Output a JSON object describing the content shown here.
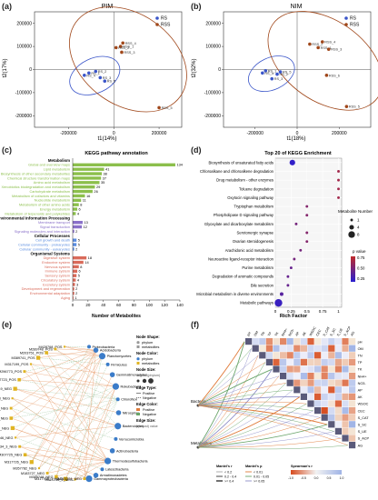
{
  "panel_labels": {
    "a": "(a)",
    "b": "(b)",
    "c": "(c)",
    "d": "(d)",
    "e": "(e)",
    "f": "(f)"
  },
  "chart_data": [
    {
      "id": "a",
      "type": "scatter",
      "title": "PIM",
      "xlabel": "t1(14%)",
      "ylabel": "t2(17%)",
      "xlim": [
        -350000,
        300000
      ],
      "ylim": [
        -250000,
        250000
      ],
      "xticks": [
        -200000,
        0,
        200000
      ],
      "yticks": [
        -200000,
        -100000,
        0,
        100000,
        200000
      ],
      "legend": "top-right",
      "series": [
        {
          "name": "RS",
          "color": "#3a55c9",
          "points": [
            {
              "label": "RS_1",
              "x": -110000,
              "y": -15000
            },
            {
              "label": "RS_2",
              "x": -80000,
              "y": -8000
            },
            {
              "label": "RS_3",
              "x": -60000,
              "y": -35000
            },
            {
              "label": "RS_4",
              "x": -130000,
              "y": -25000
            },
            {
              "label": "RS_5",
              "x": -40000,
              "y": -50000
            }
          ]
        },
        {
          "name": "RSS",
          "color": "#a0471a",
          "points": [
            {
              "label": "RSS_1",
              "x": 30000,
              "y": 100000
            },
            {
              "label": "RSS_2",
              "x": 10000,
              "y": 95000
            },
            {
              "label": "RSS_3",
              "x": 35000,
              "y": 75000
            },
            {
              "label": "RSS_4",
              "x": 40000,
              "y": 115000
            },
            {
              "label": "RSS_5",
              "x": 200000,
              "y": -165000
            }
          ]
        }
      ]
    },
    {
      "id": "b",
      "type": "scatter",
      "title": "NIM",
      "xlabel": "t1(18%)",
      "ylabel": "t2(32%)",
      "xlim": [
        -350000,
        350000
      ],
      "ylim": [
        -250000,
        250000
      ],
      "xticks": [
        -200000,
        0,
        200000
      ],
      "yticks": [
        -200000,
        -100000,
        0,
        100000,
        200000
      ],
      "legend": "top-right",
      "series": [
        {
          "name": "RS",
          "color": "#3a55c9",
          "points": [
            {
              "label": "RS_1",
              "x": -150000,
              "y": -5000
            },
            {
              "label": "RS_2",
              "x": -95000,
              "y": -20000
            },
            {
              "label": "RS_3",
              "x": -120000,
              "y": -40000
            },
            {
              "label": "RS_4",
              "x": -165000,
              "y": -15000
            },
            {
              "label": "RS_5",
              "x": -80000,
              "y": -10000
            }
          ]
        },
        {
          "name": "RSS",
          "color": "#a0471a",
          "points": [
            {
              "label": "RSS_1",
              "x": 100000,
              "y": 95000
            },
            {
              "label": "RSS_2",
              "x": 60000,
              "y": 110000
            },
            {
              "label": "RSS_3",
              "x": 150000,
              "y": 88000
            },
            {
              "label": "RSS_4",
              "x": 120000,
              "y": 120000
            },
            {
              "label": "RSS_5",
              "x": 235000,
              "y": -160000
            },
            {
              "label": "RSS_6",
              "x": 140000,
              "y": -25000
            }
          ]
        }
      ]
    },
    {
      "id": "c",
      "type": "bar",
      "title": "KEGG pathway annotation",
      "xlabel": "Number of Metabolites",
      "xlim": [
        0,
        140
      ],
      "xticks": [
        0,
        20,
        40,
        60,
        80,
        100,
        120,
        140
      ],
      "groups": [
        {
          "name": "Metabolism",
          "color": "#8cbf4c",
          "items": [
            {
              "label": "Global and overview maps",
              "value": 134
            },
            {
              "label": "Lipid metabolism",
              "value": 41
            },
            {
              "label": "Biosynthesis of other secondary metabolites",
              "value": 38
            },
            {
              "label": "Chemical structure transformation maps",
              "value": 37
            },
            {
              "label": "Amino acid metabolism",
              "value": 35
            },
            {
              "label": "Xenobiotics biodegradation and metabolism",
              "value": 29
            },
            {
              "label": "Carbohydrate metabolism",
              "value": 26
            },
            {
              "label": "Metabolism of cofactors and vitamins",
              "value": 16
            },
            {
              "label": "Nucleotide metabolism",
              "value": 11
            },
            {
              "label": "Metabolism of other amino acids",
              "value": 8
            },
            {
              "label": "Energy metabolism",
              "value": 6
            },
            {
              "label": "Metabolism of terpenoids and polyketides",
              "value": 4
            }
          ]
        },
        {
          "name": "Environmental Information Processing",
          "color": "#8a71c9",
          "items": [
            {
              "label": "Membrane transport",
              "value": 13
            },
            {
              "label": "Signal transduction",
              "value": 12
            },
            {
              "label": "Signaling molecules and interaction",
              "value": 2
            }
          ]
        },
        {
          "name": "Cellular Processes",
          "color": "#5b8de0",
          "items": [
            {
              "label": "Cell growth and death",
              "value": 5
            },
            {
              "label": "Cellular community - prokaryotes",
              "value": 5
            },
            {
              "label": "Cellular community - eukaryotes",
              "value": 2
            }
          ]
        },
        {
          "name": "Organismal Systems",
          "color": "#d96b5a",
          "items": [
            {
              "label": "Digestive system",
              "value": 18
            },
            {
              "label": "Endocrine system",
              "value": 14
            },
            {
              "label": "Nervous system",
              "value": 8
            },
            {
              "label": "Immune system",
              "value": 6
            },
            {
              "label": "Sensory system",
              "value": 5
            },
            {
              "label": "Circulatory system",
              "value": 4
            },
            {
              "label": "Excretory system",
              "value": 3
            },
            {
              "label": "Development and regeneration",
              "value": 2
            },
            {
              "label": "Environmental adaptation",
              "value": 2
            },
            {
              "label": "Aging",
              "value": 1
            }
          ]
        }
      ]
    },
    {
      "id": "d",
      "type": "scatter",
      "title": "Top 20 of KEGG Enrichment",
      "xlabel": "Rich Factor",
      "xlim": [
        0,
        1.05
      ],
      "xticks": [
        0,
        0.25,
        0.5,
        0.75,
        1
      ],
      "categories": [
        "Biosynthesis of unsaturated fatty acids",
        "Chloroalkane and chloroalkene degradation",
        "Drug metabolism - other enzymes",
        "Toluene degradation",
        "Oxytocin signaling pathway",
        "Tryptophan metabolism",
        "Phospholipase D signaling pathway",
        "Glyoxylate and dicarboxylate metabolism",
        "Serotonergic synapse",
        "Ovarian steroidogenesis",
        "Arachidonic acid metabolism",
        "Neuroactive ligand-receptor interaction",
        "Purine metabolism",
        "Degradation of aromatic compounds",
        "Bile secretion",
        "Microbial metabolism in diverse environments",
        "Metabolic pathways"
      ],
      "values": [
        0.27,
        1.0,
        1.0,
        1.0,
        1.0,
        0.5,
        0.5,
        0.33,
        0.5,
        0.5,
        0.4,
        0.3,
        0.25,
        0.2,
        0.2,
        0.1,
        0.05
      ],
      "sizes": [
        4,
        1,
        1,
        1,
        1,
        1,
        1,
        1,
        1,
        1,
        1,
        1,
        1,
        1,
        1,
        2,
        6
      ],
      "pvalue": [
        0.05,
        0.8,
        0.8,
        0.8,
        0.8,
        0.6,
        0.6,
        0.5,
        0.6,
        0.6,
        0.5,
        0.5,
        0.4,
        0.4,
        0.4,
        0.3,
        0.1
      ],
      "size_legend_title": "Metabolite Number",
      "size_legend_values": [
        "1",
        "4",
        "8"
      ],
      "color_legend_title": "p value",
      "color_legend_ticks": [
        "0.25",
        "0.50",
        "0.75"
      ],
      "color_low": "#2a1fd0",
      "color_high": "#c02a2a"
    }
  ],
  "network": {
    "metabolites": [
      "M428768_POS",
      "M289748_POS",
      "M203751_POS",
      "M389741_POS",
      "M317199_POS",
      "M296773_POS",
      "M307723_POS",
      "M307749_NEG",
      "M430173_NEG",
      "M390705_NEG",
      "M206777_NEG",
      "M329750_NEG",
      "M166746_NEG",
      "M389734_3_NEG",
      "M307725_NEG",
      "M317726_NEG",
      "M357782_NEG",
      "M183727_NEG",
      "M389748_NEG",
      "M317736_1_NEG",
      "M317736_2_NEG",
      "M307721_NEG"
    ],
    "bacteria": [
      "Proteobacteria",
      "Acidobacteria",
      "Planctomycetes",
      "Firmicutes",
      "Gemmatimonadetes",
      "Rokubacteria",
      "Chloroflexi",
      "Nitrospirae",
      "Bacteroidetes",
      "Verrucomicrobia",
      "Actinobacteria",
      "Thermodesulfobacteria",
      "Latescibacteria",
      "Armatimonadetes",
      "Gammaproteobacteria"
    ],
    "legend_title_shape": "Node Shape:",
    "legend_shape_items": [
      "phylum",
      "metabolites"
    ],
    "legend_title_color": "Node Color:",
    "legend_color_items": [
      "phylum",
      "metabolites"
    ],
    "legend_title_size": "Node Size:",
    "legend_size_note": "degree (phylum)",
    "legend_title_edge": "Edge Type:",
    "legend_edge_items": [
      "Positive",
      "Negative"
    ],
    "legend_title_edgecolor": "Edge Color:",
    "legend_edgecolor_items": [
      "Positive",
      "Negative"
    ],
    "legend_title_edgesize": "Edge Size:",
    "legend_edgesize_note": "p(adjust) value"
  },
  "heatmap": {
    "vars": [
      "pH",
      "OM",
      "TN",
      "TP",
      "TK",
      "NH4+",
      "NO3-",
      "AP",
      "AK",
      "WSOC",
      "CEC",
      "S_CAT",
      "S_SC",
      "S_UE",
      "S_ACP",
      "AG"
    ],
    "left_labels": [
      "Bacteria",
      "Metabolites"
    ],
    "legend_r_title": "Mantel's r",
    "legend_r_items": [
      "< 0.2",
      "0.2 - 0.4",
      ">= 0.4"
    ],
    "legend_p_title": "Mantel's p",
    "legend_p_items": [
      "< 0.01",
      "0.01 - 0.05",
      ">= 0.05"
    ],
    "legend_pearson_title": "Spearman's r",
    "legend_pearson_ticks": [
      "-1.0",
      "-0.5",
      "0.0",
      "0.5",
      "1.0"
    ]
  }
}
